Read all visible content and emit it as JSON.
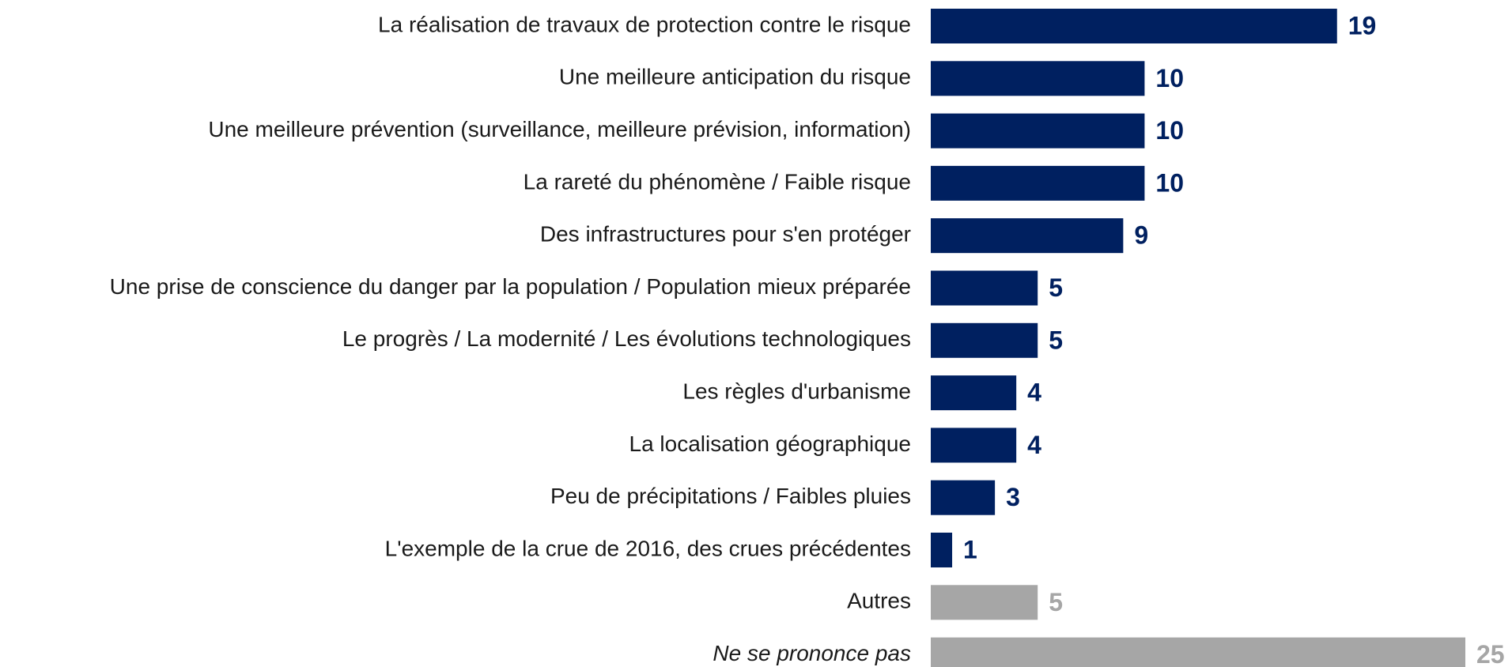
{
  "chart_data": {
    "type": "bar",
    "orientation": "horizontal",
    "categories": [
      "La réalisation de travaux de protection contre le risque",
      "Une meilleure anticipation du risque",
      "Une meilleure prévention (surveillance, meilleure prévision, information)",
      "La rareté du phénomène / Faible risque",
      "Des infrastructures pour s'en protéger",
      "Une prise de conscience du danger par la population / Population mieux préparée",
      "Le progrès / La modernité / Les évolutions technologiques",
      "Les règles d'urbanisme",
      "La localisation géographique",
      "Peu de précipitations / Faibles pluies",
      "L'exemple de la crue de 2016, des crues précédentes",
      "Autres",
      "Ne se prononce pas"
    ],
    "values": [
      19,
      10,
      10,
      10,
      9,
      5,
      5,
      4,
      4,
      3,
      1,
      5,
      25
    ],
    "colors": [
      "#002060",
      "#002060",
      "#002060",
      "#002060",
      "#002060",
      "#002060",
      "#002060",
      "#002060",
      "#002060",
      "#002060",
      "#002060",
      "#a6a6a6",
      "#a6a6a6"
    ]
  }
}
